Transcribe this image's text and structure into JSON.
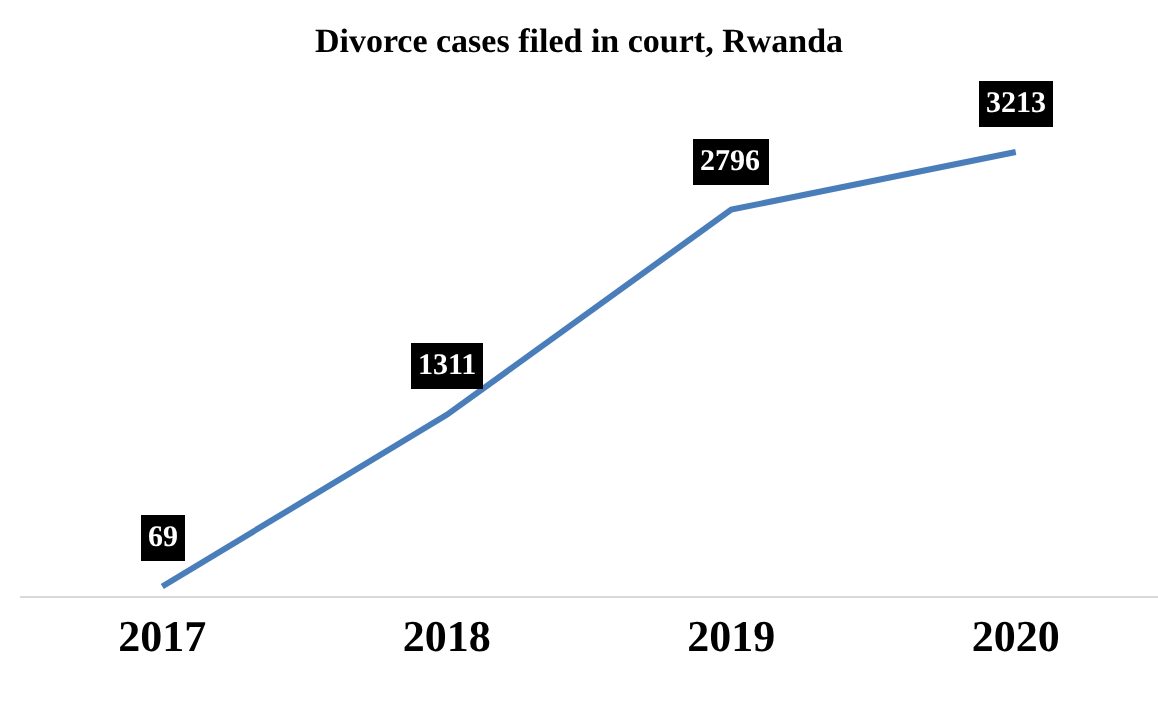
{
  "chart_data": {
    "type": "line",
    "title": "Divorce cases filed in court, Rwanda",
    "categories": [
      "2017",
      "2018",
      "2019",
      "2020"
    ],
    "values": [
      69,
      1311,
      2796,
      3213
    ],
    "color": "#4a7ebb",
    "tick_labels": "x",
    "grid": false,
    "marker": "none",
    "line_style": "solid",
    "data_labels": true
  }
}
